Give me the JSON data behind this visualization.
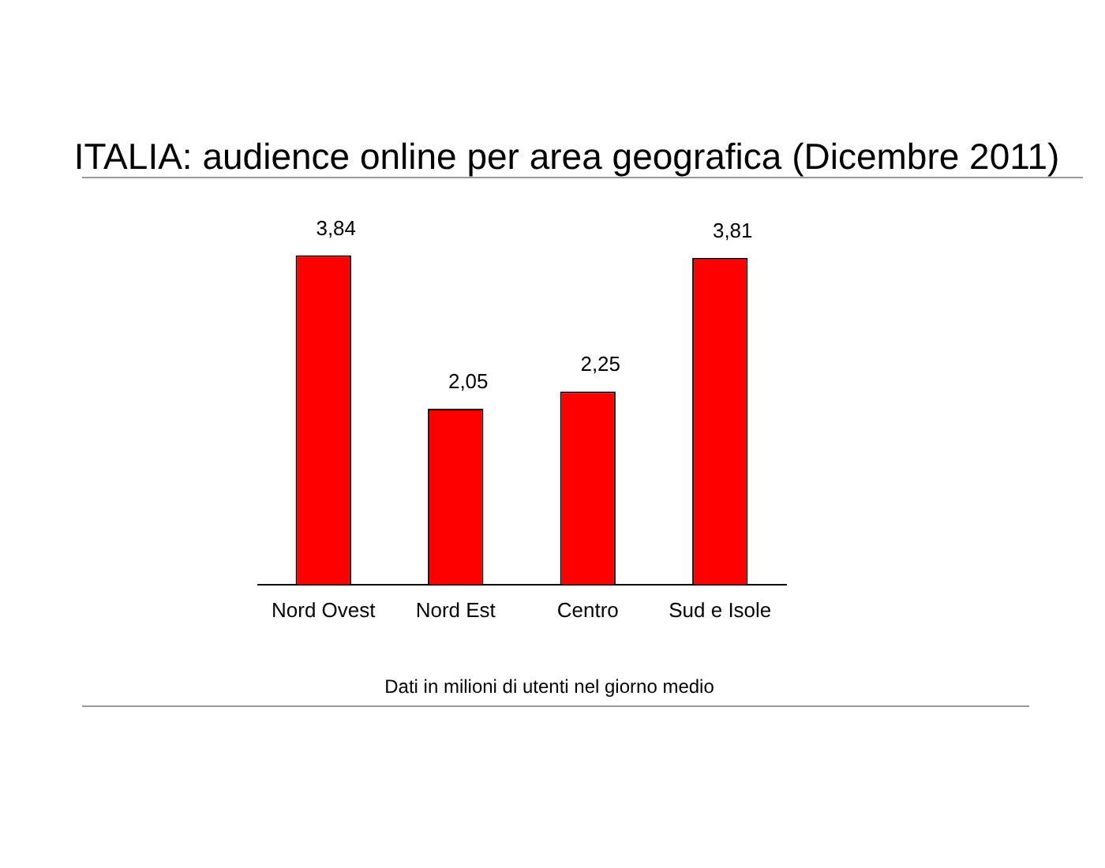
{
  "chart_data": {
    "type": "bar",
    "title": "ITALIA: audience online per area geografica (Dicembre 2011)",
    "categories": [
      "Nord Ovest",
      "Nord Est",
      "Centro",
      "Sud e Isole"
    ],
    "values": [
      3.84,
      2.05,
      2.25,
      3.81
    ],
    "value_labels": [
      "3,84",
      "2,05",
      "2,25",
      "3,81"
    ],
    "color": "#ff0000",
    "grid": false,
    "legend": false,
    "tick_labels": "x",
    "annotations": [
      "Dati in milioni di utenti nel giorno medio"
    ]
  }
}
